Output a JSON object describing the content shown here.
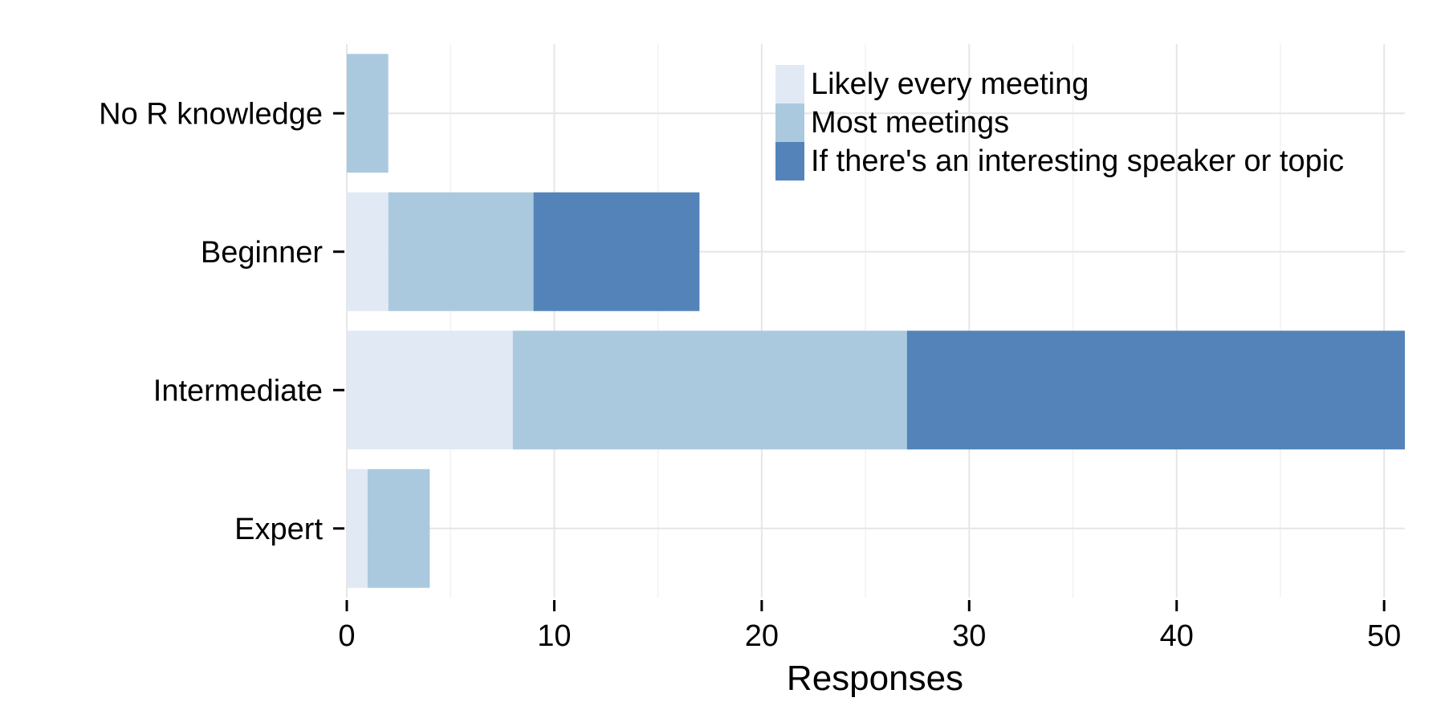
{
  "chart_data": {
    "type": "bar",
    "orientation": "horizontal",
    "stacked": true,
    "title": "",
    "xlabel": "Responses",
    "ylabel": "",
    "categories": [
      "No R knowledge",
      "Beginner",
      "Intermediate",
      "Expert"
    ],
    "series": [
      {
        "name": "Likely every meeting",
        "color": "#e1e9f5",
        "values": [
          0,
          2,
          8,
          1
        ]
      },
      {
        "name": "Most meetings",
        "color": "#abc9de",
        "values": [
          2,
          7,
          19,
          3
        ]
      },
      {
        "name": "If there's an interesting speaker or topic",
        "color": "#5383b9",
        "values": [
          0,
          8,
          24,
          0
        ]
      }
    ],
    "xlim": [
      0,
      51
    ],
    "xticks": [
      0,
      10,
      20,
      30,
      40,
      50
    ],
    "grid": true,
    "legend_position": "top-right"
  }
}
